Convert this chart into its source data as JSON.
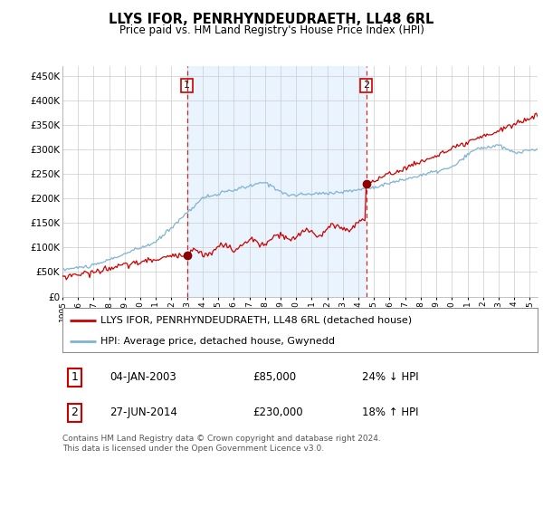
{
  "title": "LLYS IFOR, PENRHYNDEUDRAETH, LL48 6RL",
  "subtitle": "Price paid vs. HM Land Registry's House Price Index (HPI)",
  "sale1_date": "04-JAN-2003",
  "sale1_price": 85000,
  "sale1_hpi": "24% ↓ HPI",
  "sale2_date": "27-JUN-2014",
  "sale2_price": 230000,
  "sale2_hpi": "18% ↑ HPI",
  "legend_red": "LLYS IFOR, PENRHYNDEUDRAETH, LL48 6RL (detached house)",
  "legend_blue": "HPI: Average price, detached house, Gwynedd",
  "footer": "Contains HM Land Registry data © Crown copyright and database right 2024.\nThis data is licensed under the Open Government Licence v3.0.",
  "red_color": "#cc0000",
  "blue_color": "#7fb3d3",
  "vline_color": "#cc0000",
  "shade_color": "#ddeeff",
  "background_color": "#ffffff",
  "ylim": [
    0,
    470000
  ],
  "yticks": [
    0,
    50000,
    100000,
    150000,
    200000,
    250000,
    300000,
    350000,
    400000,
    450000
  ],
  "ytick_labels": [
    "£0",
    "£50K",
    "£100K",
    "£150K",
    "£200K",
    "£250K",
    "£300K",
    "£350K",
    "£400K",
    "£450K"
  ]
}
